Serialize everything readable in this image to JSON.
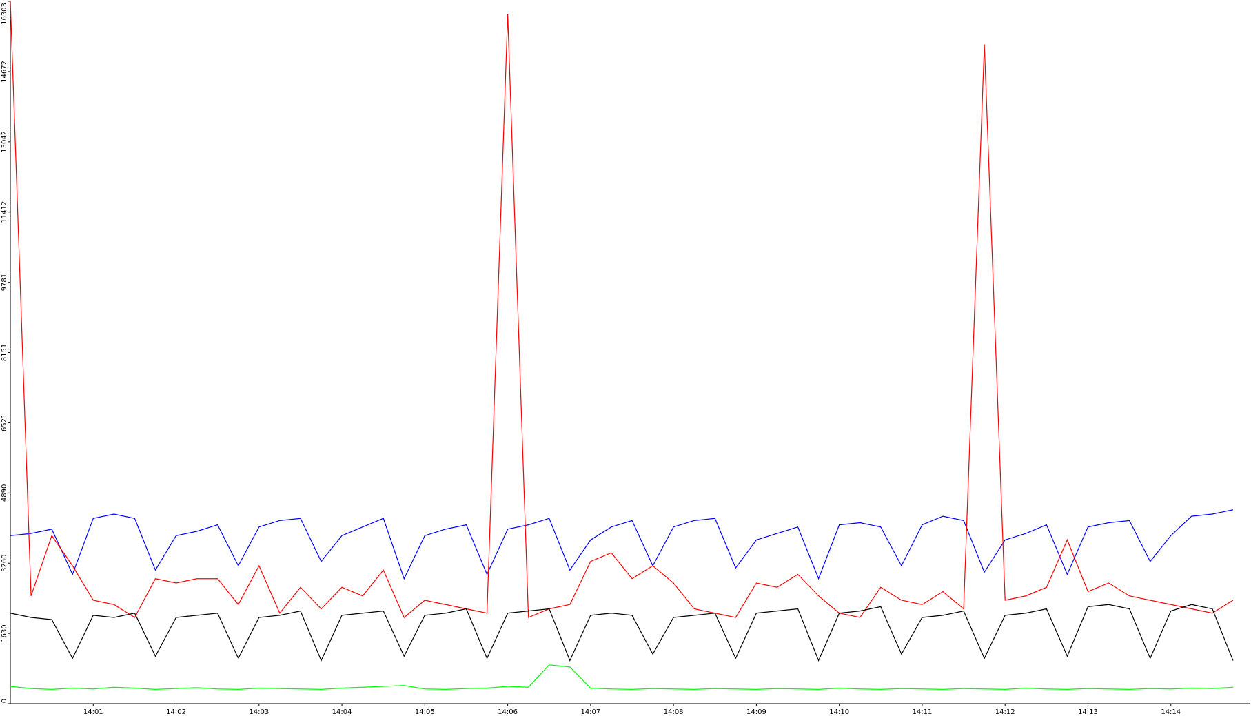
{
  "chart_data": {
    "type": "line",
    "x": [
      0,
      0.25,
      0.5,
      0.75,
      1,
      1.25,
      1.5,
      1.75,
      2,
      2.25,
      2.5,
      2.75,
      3,
      3.25,
      3.5,
      3.75,
      4,
      4.25,
      4.5,
      4.75,
      5,
      5.25,
      5.5,
      5.75,
      6,
      6.25,
      6.5,
      6.75,
      7,
      7.25,
      7.5,
      7.75,
      8,
      8.25,
      8.5,
      8.75,
      9,
      9.25,
      9.5,
      9.75,
      10,
      10.25,
      10.5,
      10.75,
      11,
      11.25,
      11.5,
      11.75,
      12,
      12.25,
      12.5,
      12.75,
      13,
      13.25,
      13.5,
      13.75,
      14,
      14.25,
      14.5,
      14.75
    ],
    "series": [
      {
        "color": "#0000ff",
        "values": [
          3900,
          3950,
          4050,
          3000,
          4300,
          4400,
          4300,
          3100,
          3900,
          4000,
          4150,
          3200,
          4100,
          4250,
          4300,
          3300,
          3900,
          4100,
          4300,
          2900,
          3900,
          4050,
          4150,
          3000,
          4050,
          4150,
          4300,
          3100,
          3800,
          4100,
          4250,
          3200,
          4100,
          4250,
          4300,
          3150,
          3800,
          3950,
          4100,
          2900,
          4150,
          4200,
          4100,
          3200,
          4150,
          4350,
          4250,
          3050,
          3800,
          3950,
          4150,
          3000,
          4100,
          4200,
          4250,
          3300,
          3900,
          4350,
          4400,
          4500
        ]
      },
      {
        "color": "#ff0000",
        "values": [
          16303,
          2500,
          3900,
          3200,
          2400,
          2300,
          2000,
          2900,
          2800,
          2900,
          2900,
          2300,
          3200,
          2100,
          2700,
          2200,
          2700,
          2500,
          3100,
          2000,
          2400,
          2300,
          2200,
          2100,
          16000,
          2000,
          2200,
          2300,
          3300,
          3500,
          2900,
          3200,
          2800,
          2200,
          2100,
          2000,
          2800,
          2700,
          3000,
          2500,
          2100,
          2000,
          2700,
          2400,
          2300,
          2600,
          2200,
          15300,
          2400,
          2500,
          2700,
          3800,
          2600,
          2800,
          2500,
          2400,
          2300,
          2200,
          2100,
          2400
        ]
      },
      {
        "color": "#000000",
        "values": [
          2100,
          2000,
          1950,
          1050,
          2050,
          2000,
          2100,
          1100,
          2000,
          2050,
          2100,
          1050,
          2000,
          2050,
          2150,
          1000,
          2050,
          2100,
          2150,
          1100,
          2050,
          2100,
          2200,
          1050,
          2100,
          2150,
          2200,
          1000,
          2050,
          2100,
          2050,
          1150,
          2000,
          2050,
          2100,
          1050,
          2100,
          2150,
          2200,
          1000,
          2100,
          2150,
          2250,
          1150,
          2000,
          2050,
          2150,
          1050,
          2050,
          2100,
          2200,
          1100,
          2250,
          2300,
          2200,
          1050,
          2150,
          2300,
          2200,
          1000
        ]
      },
      {
        "color": "#00ff00",
        "values": [
          400,
          350,
          330,
          360,
          340,
          380,
          360,
          330,
          350,
          370,
          340,
          330,
          360,
          350,
          340,
          330,
          360,
          380,
          400,
          420,
          340,
          330,
          350,
          360,
          400,
          380,
          900,
          850,
          360,
          340,
          330,
          350,
          340,
          330,
          350,
          340,
          330,
          350,
          340,
          330,
          360,
          340,
          330,
          350,
          340,
          330,
          350,
          340,
          330,
          360,
          340,
          330,
          350,
          340,
          330,
          350,
          340,
          360,
          350,
          380
        ]
      }
    ],
    "xlim": [
      0,
      14.95
    ],
    "xticks": [
      {
        "value": 1,
        "label": "14:01"
      },
      {
        "value": 2,
        "label": "14:02"
      },
      {
        "value": 3,
        "label": "14:03"
      },
      {
        "value": 4,
        "label": "14:04"
      },
      {
        "value": 5,
        "label": "14:05"
      },
      {
        "value": 6,
        "label": "14:06"
      },
      {
        "value": 7,
        "label": "14:07"
      },
      {
        "value": 8,
        "label": "14:08"
      },
      {
        "value": 9,
        "label": "14:09"
      },
      {
        "value": 10,
        "label": "14:10"
      },
      {
        "value": 11,
        "label": "14:11"
      },
      {
        "value": 12,
        "label": "14:12"
      },
      {
        "value": 13,
        "label": "14:13"
      },
      {
        "value": 14,
        "label": "14:14"
      }
    ],
    "ylim": [
      0,
      16303
    ],
    "yticks": [
      0,
      1630,
      3260,
      4890,
      6521,
      8151,
      9781,
      11412,
      13042,
      14672,
      16303
    ]
  }
}
